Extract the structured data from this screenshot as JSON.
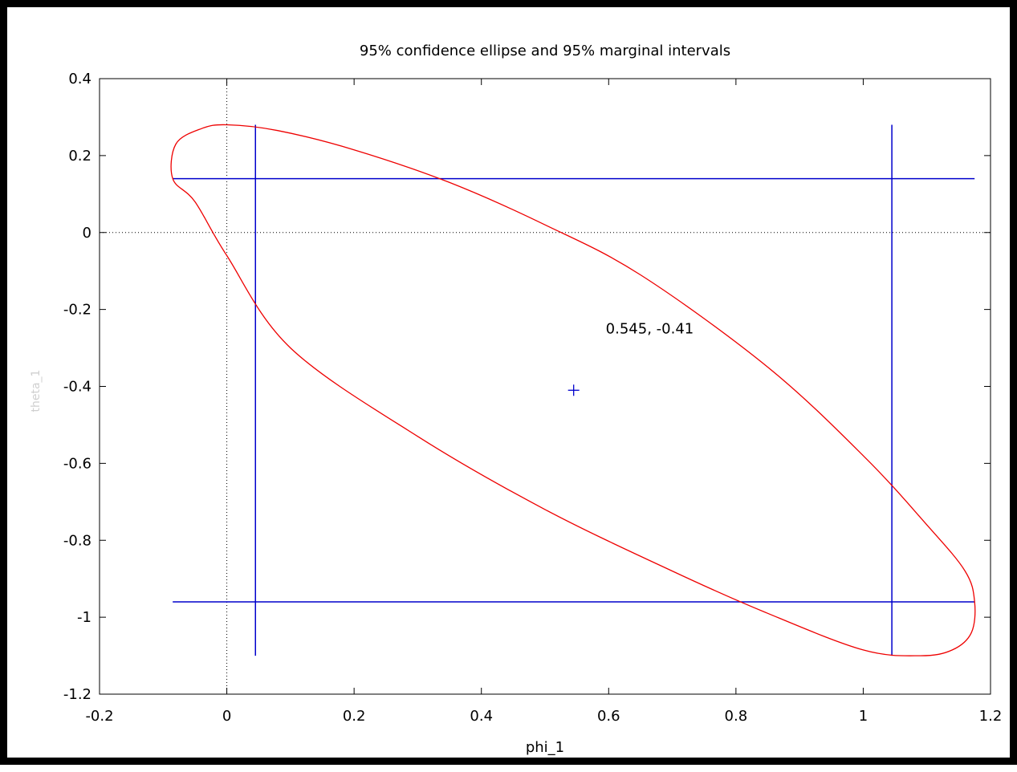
{
  "chart_data": {
    "type": "scatter",
    "title": "95% confidence ellipse and 95% marginal intervals",
    "xlabel": "phi_1",
    "ylabel": "theta_1",
    "xlim": [
      -0.2,
      1.2
    ],
    "ylim": [
      -1.2,
      0.4
    ],
    "xticks": [
      -0.2,
      0,
      0.2,
      0.4,
      0.6,
      0.8,
      1,
      1.2
    ],
    "yticks": [
      -1.2,
      -1,
      -0.8,
      -0.6,
      -0.4,
      -0.2,
      0,
      0.2,
      0.4
    ],
    "xtick_labels": [
      "-0.2",
      "0",
      "0.2",
      "0.4",
      "0.6",
      "0.8",
      "1",
      "1.2"
    ],
    "ytick_labels": [
      "-1.2",
      "-1",
      "-0.8",
      "-0.6",
      "-0.4",
      "-0.2",
      "0",
      "0.2",
      "0.4"
    ],
    "zero_axes": {
      "x": 0,
      "y": 0,
      "style": "dotted"
    },
    "point": {
      "x": 0.545,
      "y": -0.41,
      "label": "0.545, -0.41",
      "marker": "+"
    },
    "ellipse": {
      "center": [
        0.545,
        -0.41
      ],
      "x_extent": [
        -0.085,
        1.175
      ],
      "y_extent": [
        -1.1,
        0.28
      ],
      "points": [
        [
          1.175,
          -0.96
        ],
        [
          1.17,
          -1.04
        ],
        [
          1.14,
          -1.085
        ],
        [
          1.09,
          -1.1
        ],
        [
          1.0,
          -1.085
        ],
        [
          0.85,
          -0.99
        ],
        [
          0.7,
          -0.88
        ],
        [
          0.5,
          -0.72
        ],
        [
          0.3,
          -0.53
        ],
        [
          0.1,
          -0.3
        ],
        [
          0.0,
          -0.06
        ],
        [
          -0.05,
          0.08
        ],
        [
          -0.085,
          0.14
        ],
        [
          -0.08,
          0.23
        ],
        [
          -0.04,
          0.27
        ],
        [
          0.0,
          0.28
        ],
        [
          0.08,
          0.265
        ],
        [
          0.2,
          0.215
        ],
        [
          0.35,
          0.13
        ],
        [
          0.5,
          0.02
        ],
        [
          0.65,
          -0.11
        ],
        [
          0.85,
          -0.35
        ],
        [
          1.0,
          -0.58
        ],
        [
          1.1,
          -0.76
        ],
        [
          1.16,
          -0.88
        ],
        [
          1.175,
          -0.96
        ]
      ],
      "color": "#ee0000"
    },
    "intervals": {
      "phi_1": [
        0.045,
        1.045
      ],
      "theta_1": [
        -0.96,
        0.14
      ],
      "vertical_span": [
        -1.1,
        0.28
      ],
      "horizontal_span": [
        -0.085,
        1.175
      ],
      "color": "#0000cc"
    }
  }
}
